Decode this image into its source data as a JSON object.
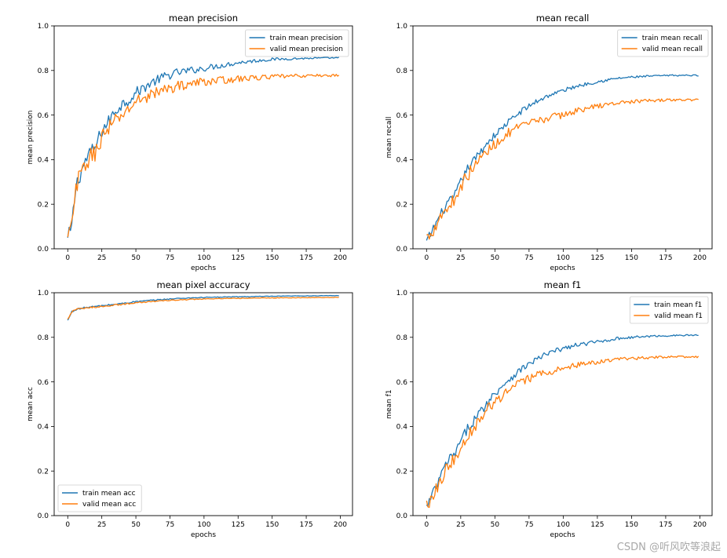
{
  "figure": {
    "watermark": "CSDN @听风吹等浪起"
  },
  "chart_data": [
    {
      "type": "line",
      "title": "mean precision",
      "xlabel": "epochs",
      "ylabel": "mean precision",
      "xlim": [
        -9.95,
        208.95
      ],
      "ylim": [
        0,
        1
      ],
      "xticks": [
        0,
        25,
        50,
        75,
        100,
        125,
        150,
        175,
        200
      ],
      "yticks": [
        0.0,
        0.2,
        0.4,
        0.6,
        0.8,
        1.0
      ],
      "legend": "top-right",
      "x_range": [
        0,
        199
      ],
      "series": [
        {
          "name": "train mean precision",
          "color": "#1f77b4",
          "points": [
            [
              0,
              0.04
            ],
            [
              3,
              0.1
            ],
            [
              6,
              0.28
            ],
            [
              10,
              0.35
            ],
            [
              15,
              0.42
            ],
            [
              20,
              0.45
            ],
            [
              25,
              0.53
            ],
            [
              30,
              0.57
            ],
            [
              35,
              0.62
            ],
            [
              40,
              0.65
            ],
            [
              45,
              0.67
            ],
            [
              50,
              0.7
            ],
            [
              60,
              0.74
            ],
            [
              70,
              0.77
            ],
            [
              80,
              0.79
            ],
            [
              90,
              0.8
            ],
            [
              100,
              0.81
            ],
            [
              110,
              0.82
            ],
            [
              125,
              0.835
            ],
            [
              140,
              0.845
            ],
            [
              150,
              0.85
            ],
            [
              165,
              0.853
            ],
            [
              180,
              0.855
            ],
            [
              199,
              0.857
            ]
          ],
          "noise": [
            0.035,
            0.003
          ]
        },
        {
          "name": "valid mean precision",
          "color": "#ff7f0e",
          "points": [
            [
              0,
              0.04
            ],
            [
              3,
              0.1
            ],
            [
              6,
              0.27
            ],
            [
              10,
              0.34
            ],
            [
              15,
              0.4
            ],
            [
              20,
              0.43
            ],
            [
              25,
              0.5
            ],
            [
              30,
              0.54
            ],
            [
              35,
              0.57
            ],
            [
              40,
              0.6
            ],
            [
              45,
              0.63
            ],
            [
              50,
              0.66
            ],
            [
              60,
              0.69
            ],
            [
              70,
              0.71
            ],
            [
              80,
              0.73
            ],
            [
              90,
              0.74
            ],
            [
              100,
              0.75
            ],
            [
              110,
              0.755
            ],
            [
              125,
              0.762
            ],
            [
              140,
              0.768
            ],
            [
              150,
              0.772
            ],
            [
              165,
              0.775
            ],
            [
              180,
              0.777
            ],
            [
              199,
              0.778
            ]
          ],
          "noise": [
            0.04,
            0.006
          ]
        }
      ]
    },
    {
      "type": "line",
      "title": "mean recall",
      "xlabel": "epochs",
      "ylabel": "mean recall",
      "xlim": [
        -9.95,
        208.95
      ],
      "ylim": [
        0,
        1
      ],
      "xticks": [
        0,
        25,
        50,
        75,
        100,
        125,
        150,
        175,
        200
      ],
      "yticks": [
        0.0,
        0.2,
        0.4,
        0.6,
        0.8,
        1.0
      ],
      "legend": "top-right",
      "x_range": [
        0,
        199
      ],
      "series": [
        {
          "name": "train mean recall",
          "color": "#1f77b4",
          "points": [
            [
              0,
              0.03
            ],
            [
              5,
              0.09
            ],
            [
              10,
              0.15
            ],
            [
              15,
              0.2
            ],
            [
              20,
              0.23
            ],
            [
              25,
              0.3
            ],
            [
              30,
              0.36
            ],
            [
              35,
              0.4
            ],
            [
              40,
              0.44
            ],
            [
              45,
              0.48
            ],
            [
              50,
              0.51
            ],
            [
              60,
              0.57
            ],
            [
              70,
              0.62
            ],
            [
              80,
              0.66
            ],
            [
              90,
              0.69
            ],
            [
              100,
              0.71
            ],
            [
              110,
              0.73
            ],
            [
              125,
              0.75
            ],
            [
              140,
              0.765
            ],
            [
              150,
              0.77
            ],
            [
              165,
              0.775
            ],
            [
              180,
              0.778
            ],
            [
              199,
              0.778
            ]
          ],
          "noise": [
            0.02,
            0.003
          ]
        },
        {
          "name": "valid mean recall",
          "color": "#ff7f0e",
          "points": [
            [
              0,
              0.05
            ],
            [
              5,
              0.09
            ],
            [
              10,
              0.15
            ],
            [
              15,
              0.18
            ],
            [
              20,
              0.22
            ],
            [
              25,
              0.28
            ],
            [
              30,
              0.33
            ],
            [
              35,
              0.37
            ],
            [
              40,
              0.41
            ],
            [
              45,
              0.44
            ],
            [
              50,
              0.47
            ],
            [
              60,
              0.52
            ],
            [
              70,
              0.55
            ],
            [
              80,
              0.57
            ],
            [
              90,
              0.59
            ],
            [
              100,
              0.6
            ],
            [
              110,
              0.62
            ],
            [
              125,
              0.64
            ],
            [
              140,
              0.655
            ],
            [
              150,
              0.66
            ],
            [
              165,
              0.665
            ],
            [
              180,
              0.668
            ],
            [
              199,
              0.668
            ]
          ],
          "noise": [
            0.03,
            0.005
          ]
        }
      ]
    },
    {
      "type": "line",
      "title": "mean pixel accuracy",
      "xlabel": "epochs",
      "ylabel": "mean acc",
      "xlim": [
        -9.95,
        208.95
      ],
      "ylim": [
        0,
        1
      ],
      "xticks": [
        0,
        25,
        50,
        75,
        100,
        125,
        150,
        175,
        200
      ],
      "yticks": [
        0.0,
        0.2,
        0.4,
        0.6,
        0.8,
        1.0
      ],
      "legend": "bottom-left",
      "x_range": [
        0,
        199
      ],
      "series": [
        {
          "name": "train mean acc",
          "color": "#1f77b4",
          "points": [
            [
              0,
              0.875
            ],
            [
              3,
              0.915
            ],
            [
              6,
              0.925
            ],
            [
              10,
              0.93
            ],
            [
              15,
              0.935
            ],
            [
              20,
              0.938
            ],
            [
              30,
              0.945
            ],
            [
              40,
              0.952
            ],
            [
              50,
              0.96
            ],
            [
              60,
              0.965
            ],
            [
              70,
              0.97
            ],
            [
              80,
              0.974
            ],
            [
              90,
              0.977
            ],
            [
              100,
              0.979
            ],
            [
              125,
              0.982
            ],
            [
              150,
              0.984
            ],
            [
              175,
              0.986
            ],
            [
              199,
              0.987
            ]
          ],
          "noise": [
            0.003,
            0.001
          ]
        },
        {
          "name": "valid mean acc",
          "color": "#ff7f0e",
          "points": [
            [
              0,
              0.88
            ],
            [
              3,
              0.915
            ],
            [
              6,
              0.925
            ],
            [
              10,
              0.928
            ],
            [
              15,
              0.932
            ],
            [
              20,
              0.936
            ],
            [
              30,
              0.942
            ],
            [
              40,
              0.948
            ],
            [
              50,
              0.955
            ],
            [
              60,
              0.96
            ],
            [
              70,
              0.964
            ],
            [
              80,
              0.967
            ],
            [
              90,
              0.97
            ],
            [
              100,
              0.972
            ],
            [
              125,
              0.975
            ],
            [
              150,
              0.977
            ],
            [
              175,
              0.978
            ],
            [
              199,
              0.979
            ]
          ],
          "noise": [
            0.003,
            0.001
          ]
        }
      ]
    },
    {
      "type": "line",
      "title": "mean f1",
      "xlabel": "epochs",
      "ylabel": "mean f1",
      "xlim": [
        -9.95,
        208.95
      ],
      "ylim": [
        0,
        1
      ],
      "xticks": [
        0,
        25,
        50,
        75,
        100,
        125,
        150,
        175,
        200
      ],
      "yticks": [
        0.0,
        0.2,
        0.4,
        0.6,
        0.8,
        1.0
      ],
      "legend": "top-right",
      "x_range": [
        0,
        199
      ],
      "series": [
        {
          "name": "train mean f1",
          "color": "#1f77b4",
          "points": [
            [
              0,
              0.035
            ],
            [
              5,
              0.1
            ],
            [
              10,
              0.17
            ],
            [
              15,
              0.24
            ],
            [
              20,
              0.27
            ],
            [
              25,
              0.33
            ],
            [
              30,
              0.39
            ],
            [
              35,
              0.43
            ],
            [
              40,
              0.47
            ],
            [
              45,
              0.51
            ],
            [
              50,
              0.55
            ],
            [
              60,
              0.61
            ],
            [
              70,
              0.66
            ],
            [
              80,
              0.7
            ],
            [
              90,
              0.73
            ],
            [
              100,
              0.75
            ],
            [
              110,
              0.765
            ],
            [
              125,
              0.78
            ],
            [
              140,
              0.795
            ],
            [
              150,
              0.8
            ],
            [
              165,
              0.805
            ],
            [
              180,
              0.808
            ],
            [
              199,
              0.81
            ]
          ],
          "noise": [
            0.025,
            0.003
          ]
        },
        {
          "name": "valid mean f1",
          "color": "#ff7f0e",
          "points": [
            [
              0,
              0.05
            ],
            [
              5,
              0.1
            ],
            [
              10,
              0.16
            ],
            [
              15,
              0.22
            ],
            [
              20,
              0.25
            ],
            [
              25,
              0.31
            ],
            [
              30,
              0.36
            ],
            [
              35,
              0.4
            ],
            [
              40,
              0.44
            ],
            [
              45,
              0.48
            ],
            [
              50,
              0.51
            ],
            [
              60,
              0.56
            ],
            [
              70,
              0.6
            ],
            [
              80,
              0.63
            ],
            [
              90,
              0.645
            ],
            [
              100,
              0.66
            ],
            [
              110,
              0.675
            ],
            [
              125,
              0.69
            ],
            [
              140,
              0.7
            ],
            [
              150,
              0.705
            ],
            [
              165,
              0.71
            ],
            [
              180,
              0.712
            ],
            [
              199,
              0.712
            ]
          ],
          "noise": [
            0.03,
            0.004
          ]
        }
      ]
    }
  ]
}
